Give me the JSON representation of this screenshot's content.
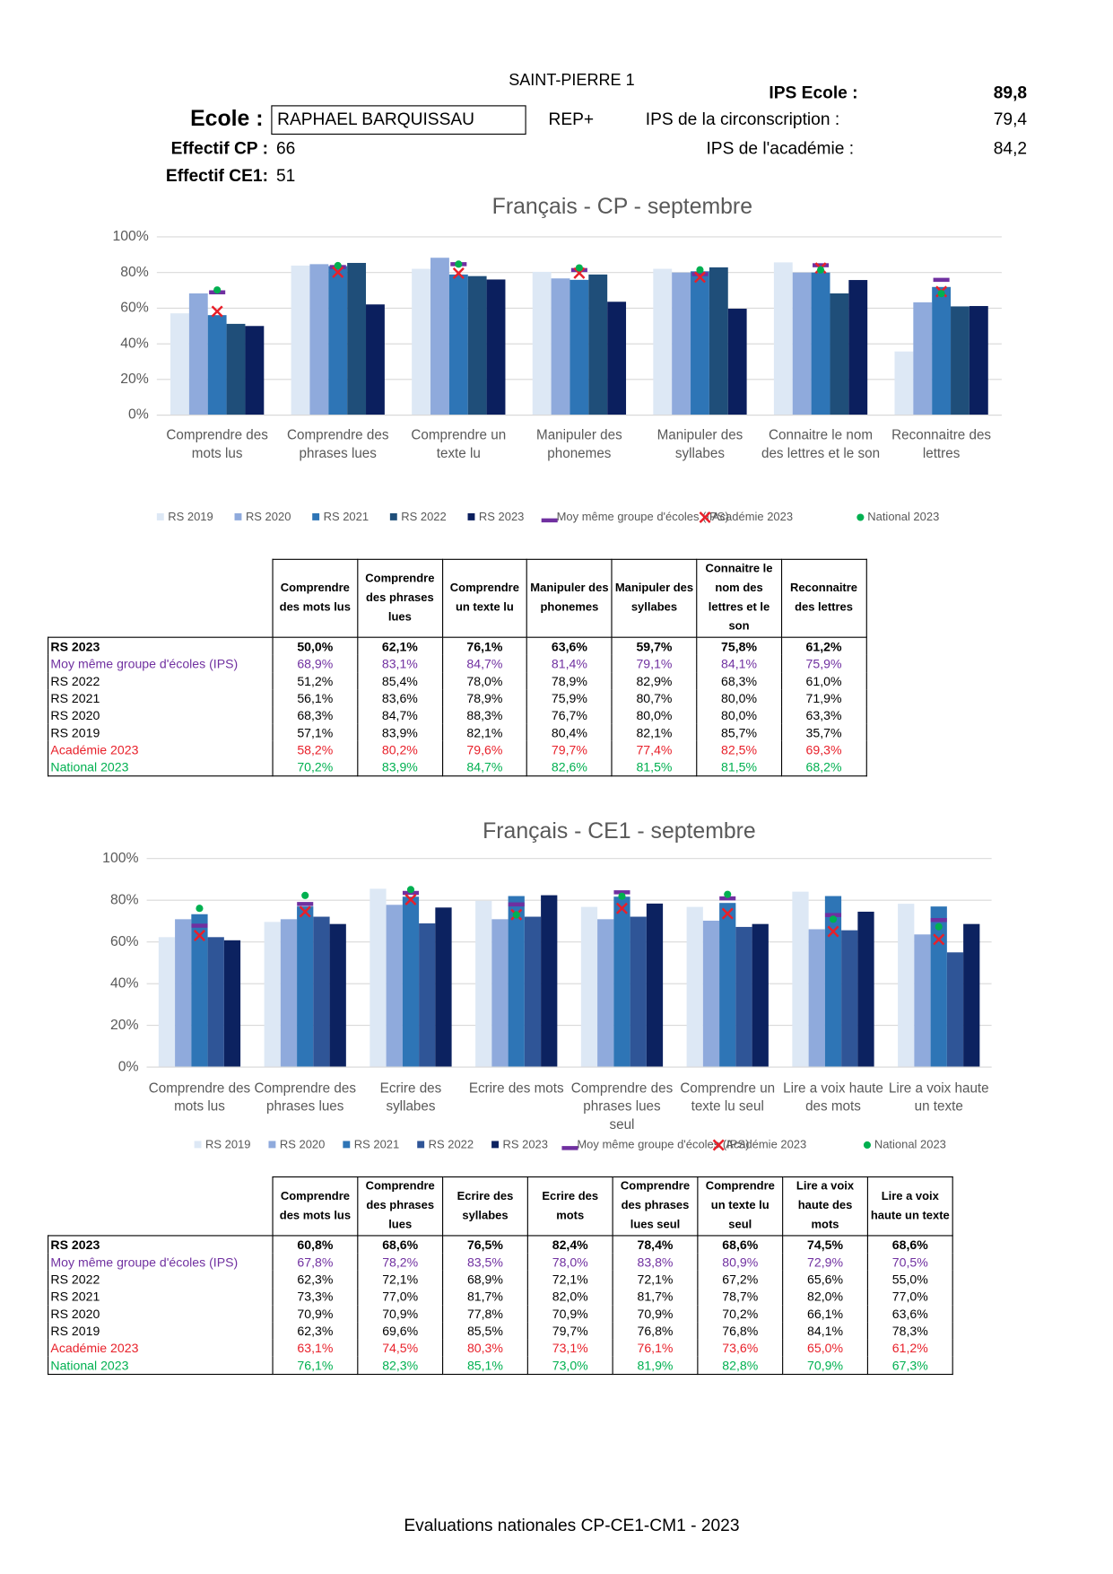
{
  "header": {
    "district": "SAINT-PIERRE 1",
    "school_label": "Ecole :",
    "school_name": "RAPHAEL BARQUISSAU",
    "network": "REP+",
    "ips_school_label": "IPS Ecole :",
    "ips_school": "89,8",
    "ips_circ_label": "IPS de la circonscription :",
    "ips_circ": "79,4",
    "ips_acad_label": "IPS de l'académie :",
    "ips_acad": "84,2",
    "cp_label": "Effectif CP :",
    "cp_count": "66",
    "ce1_label": "Effectif CE1:",
    "ce1_count": "51"
  },
  "chart_data": [
    {
      "type": "bar",
      "title": "Français - CP - septembre",
      "categories": [
        "Comprendre des mots lus",
        "Comprendre des phrases lues",
        "Comprendre un texte lu",
        "Manipuler des phonemes",
        "Manipuler des syllabes",
        "Connaitre le nom des lettres et le son",
        "Reconnaitre des lettres"
      ],
      "ylim": [
        0,
        100
      ],
      "yticks": [
        {
          "value": 0,
          "label": "0%"
        },
        {
          "value": 20,
          "label": "20%"
        },
        {
          "value": 40,
          "label": "40%"
        },
        {
          "value": 60,
          "label": "60%"
        },
        {
          "value": 80,
          "label": "80%"
        },
        {
          "value": 100,
          "label": "100%"
        }
      ],
      "grid": true,
      "series": [
        {
          "name": "RS 2019",
          "color": "#dde8f5",
          "values": [
            57.1,
            83.9,
            82.1,
            80.4,
            82.1,
            85.7,
            35.7
          ]
        },
        {
          "name": "RS 2020",
          "color": "#8faadc",
          "values": [
            68.3,
            84.7,
            88.3,
            76.7,
            80.0,
            80.0,
            63.3
          ]
        },
        {
          "name": "RS 2021",
          "color": "#2e75b6",
          "values": [
            56.1,
            83.6,
            78.9,
            75.9,
            80.7,
            80.0,
            71.9
          ]
        },
        {
          "name": "RS 2022",
          "color": "#1f4e79",
          "values": [
            51.2,
            85.4,
            78.0,
            78.9,
            82.9,
            68.3,
            61.0
          ]
        },
        {
          "name": "RS 2023",
          "color": "#0b1f5e",
          "values": [
            50.0,
            62.1,
            76.1,
            63.6,
            59.7,
            75.8,
            61.2
          ]
        },
        {
          "name": "Moy même groupe d'écoles (IPS)",
          "color": "#7030a0",
          "marker": "dash",
          "values": [
            68.9,
            83.1,
            84.7,
            81.4,
            79.1,
            84.1,
            75.9
          ]
        },
        {
          "name": "Académie 2023",
          "color": "#e8202a",
          "marker": "x",
          "values": [
            58.2,
            80.2,
            79.6,
            79.7,
            77.4,
            82.5,
            69.3
          ]
        },
        {
          "name": "National 2023",
          "color": "#00b050",
          "marker": "dot",
          "values": [
            70.2,
            83.9,
            84.7,
            82.6,
            81.5,
            81.5,
            68.2
          ]
        }
      ]
    },
    {
      "type": "bar",
      "title": "Français - CE1 - septembre",
      "categories": [
        "Comprendre des mots lus",
        "Comprendre des phrases lues",
        "Ecrire des syllabes",
        "Ecrire des mots",
        "Comprendre des phrases lues seul",
        "Comprendre un texte lu seul",
        "Lire a voix haute des mots",
        "Lire a voix haute un texte"
      ],
      "ylim": [
        0,
        100
      ],
      "yticks": [
        {
          "value": 0,
          "label": "0%"
        },
        {
          "value": 20,
          "label": "20%"
        },
        {
          "value": 40,
          "label": "40%"
        },
        {
          "value": 60,
          "label": "60%"
        },
        {
          "value": 80,
          "label": "80%"
        },
        {
          "value": 100,
          "label": "100%"
        }
      ],
      "grid": true,
      "series": [
        {
          "name": "RS 2019",
          "color": "#dde8f5",
          "values": [
            62.3,
            69.6,
            85.5,
            79.7,
            76.8,
            76.8,
            84.1,
            78.3
          ]
        },
        {
          "name": "RS 2020",
          "color": "#8faadc",
          "values": [
            70.9,
            70.9,
            77.8,
            70.9,
            70.9,
            70.2,
            66.1,
            63.6
          ]
        },
        {
          "name": "RS 2021",
          "color": "#2e75b6",
          "values": [
            73.3,
            77.0,
            81.7,
            82.0,
            81.7,
            78.7,
            82.0,
            77.0
          ]
        },
        {
          "name": "RS 2022",
          "color": "#2f5597",
          "values": [
            62.3,
            72.1,
            68.9,
            72.1,
            72.1,
            67.2,
            65.6,
            55.0
          ]
        },
        {
          "name": "RS 2023",
          "color": "#0c2260",
          "values": [
            60.8,
            68.6,
            76.5,
            82.4,
            78.4,
            68.6,
            74.5,
            68.6
          ]
        },
        {
          "name": "Moy même groupe d'écoles (IPS)",
          "color": "#7030a0",
          "marker": "dash",
          "values": [
            67.8,
            78.2,
            83.5,
            78.0,
            83.8,
            80.9,
            72.9,
            70.5
          ]
        },
        {
          "name": "Académie 2023",
          "color": "#e8202a",
          "marker": "x",
          "values": [
            63.1,
            74.5,
            80.3,
            73.1,
            76.1,
            73.6,
            65.0,
            61.2
          ]
        },
        {
          "name": "National 2023",
          "color": "#00b050",
          "marker": "dot",
          "values": [
            76.1,
            82.3,
            85.1,
            73.0,
            81.9,
            82.8,
            70.9,
            67.3
          ]
        }
      ]
    }
  ],
  "tables": [
    {
      "columns": [
        "Comprendre des mots lus",
        "Comprendre des phrases lues",
        "Comprendre un texte lu",
        "Manipuler des phonemes",
        "Manipuler des syllabes",
        "Connaitre le nom des lettres et le son",
        "Reconnaitre des lettres"
      ],
      "rows": [
        {
          "label": "RS 2023",
          "cells": [
            "50,0%",
            "62,1%",
            "76,1%",
            "63,6%",
            "59,7%",
            "75,8%",
            "61,2%"
          ]
        },
        {
          "label": "Moy même groupe d'écoles (IPS)",
          "cells": [
            "68,9%",
            "83,1%",
            "84,7%",
            "81,4%",
            "79,1%",
            "84,1%",
            "75,9%"
          ]
        },
        {
          "label": "RS 2022",
          "cells": [
            "51,2%",
            "85,4%",
            "78,0%",
            "78,9%",
            "82,9%",
            "68,3%",
            "61,0%"
          ]
        },
        {
          "label": "RS 2021",
          "cells": [
            "56,1%",
            "83,6%",
            "78,9%",
            "75,9%",
            "80,7%",
            "80,0%",
            "71,9%"
          ]
        },
        {
          "label": "RS 2020",
          "cells": [
            "68,3%",
            "84,7%",
            "88,3%",
            "76,7%",
            "80,0%",
            "80,0%",
            "63,3%"
          ]
        },
        {
          "label": "RS 2019",
          "cells": [
            "57,1%",
            "83,9%",
            "82,1%",
            "80,4%",
            "82,1%",
            "85,7%",
            "35,7%"
          ]
        },
        {
          "label": "Académie 2023",
          "cells": [
            "58,2%",
            "80,2%",
            "79,6%",
            "79,7%",
            "77,4%",
            "82,5%",
            "69,3%"
          ]
        },
        {
          "label": "National 2023",
          "cells": [
            "70,2%",
            "83,9%",
            "84,7%",
            "82,6%",
            "81,5%",
            "81,5%",
            "68,2%"
          ]
        }
      ]
    },
    {
      "columns": [
        "Comprendre des mots lus",
        "Comprendre des phrases lues",
        "Ecrire des syllabes",
        "Ecrire des mots",
        "Comprendre des phrases lues seul",
        "Comprendre un texte lu seul",
        "Lire a voix haute des mots",
        "Lire a voix haute un texte"
      ],
      "rows": [
        {
          "label": "RS 2023",
          "cells": [
            "60,8%",
            "68,6%",
            "76,5%",
            "82,4%",
            "78,4%",
            "68,6%",
            "74,5%",
            "68,6%"
          ]
        },
        {
          "label": "Moy même groupe d'écoles (IPS)",
          "cells": [
            "67,8%",
            "78,2%",
            "83,5%",
            "78,0%",
            "83,8%",
            "80,9%",
            "72,9%",
            "70,5%"
          ]
        },
        {
          "label": "RS 2022",
          "cells": [
            "62,3%",
            "72,1%",
            "68,9%",
            "72,1%",
            "72,1%",
            "67,2%",
            "65,6%",
            "55,0%"
          ]
        },
        {
          "label": "RS 2021",
          "cells": [
            "73,3%",
            "77,0%",
            "81,7%",
            "82,0%",
            "81,7%",
            "78,7%",
            "82,0%",
            "77,0%"
          ]
        },
        {
          "label": "RS 2020",
          "cells": [
            "70,9%",
            "70,9%",
            "77,8%",
            "70,9%",
            "70,9%",
            "70,2%",
            "66,1%",
            "63,6%"
          ]
        },
        {
          "label": "RS 2019",
          "cells": [
            "62,3%",
            "69,6%",
            "85,5%",
            "79,7%",
            "76,8%",
            "76,8%",
            "84,1%",
            "78,3%"
          ]
        },
        {
          "label": "Académie 2023",
          "cells": [
            "63,1%",
            "74,5%",
            "80,3%",
            "73,1%",
            "76,1%",
            "73,6%",
            "65,0%",
            "61,2%"
          ]
        },
        {
          "label": "National 2023",
          "cells": [
            "76,1%",
            "82,3%",
            "85,1%",
            "73,0%",
            "81,9%",
            "82,8%",
            "70,9%",
            "67,3%"
          ]
        }
      ]
    }
  ],
  "footer": "Evaluations nationales CP-CE1-CM1 - 2023"
}
